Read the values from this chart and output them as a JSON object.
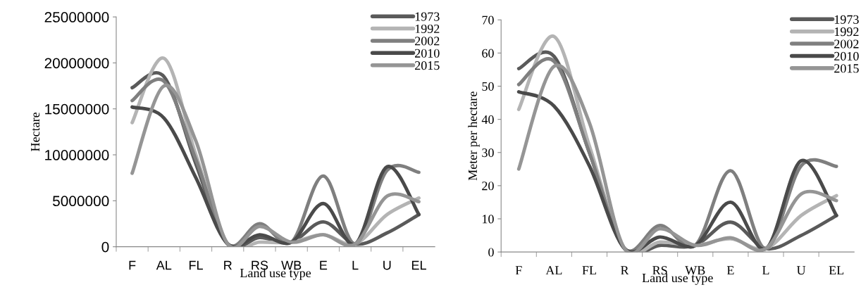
{
  "chart_data": [
    {
      "type": "line",
      "xlabel": "Land use type",
      "ylabel": "Hectare",
      "categories": [
        "F",
        "AL",
        "FL",
        "R",
        "RS",
        "WB",
        "E",
        "L",
        "U",
        "EL"
      ],
      "ylim": [
        0,
        25000000
      ],
      "yticks": [
        0,
        5000000,
        10000000,
        15000000,
        20000000,
        25000000
      ],
      "grid": false,
      "legend": "top right",
      "marker": "none",
      "line_style": "solid",
      "series": [
        {
          "name": "1973",
          "color": "#5a5a5a",
          "values": [
            17300000,
            18500000,
            9000000,
            300000,
            1000000,
            500000,
            2700000,
            300000,
            1500000,
            3500000
          ]
        },
        {
          "name": "1992",
          "color": "#b4b4b4",
          "values": [
            13500000,
            20500000,
            10000000,
            300000,
            500000,
            500000,
            1300000,
            300000,
            3500000,
            5300000
          ]
        },
        {
          "name": "2002",
          "color": "#7f7f7f",
          "values": [
            15900000,
            18000000,
            9500000,
            300000,
            2500000,
            500000,
            7700000,
            300000,
            8300000,
            8100000
          ]
        },
        {
          "name": "2010",
          "color": "#4a4a4a",
          "values": [
            15200000,
            14000000,
            7500000,
            300000,
            1300000,
            500000,
            4700000,
            300000,
            8700000,
            3500000
          ]
        },
        {
          "name": "2015",
          "color": "#959595",
          "values": [
            8000000,
            17500000,
            11500000,
            300000,
            2200000,
            500000,
            1300000,
            300000,
            5500000,
            4900000
          ]
        }
      ]
    },
    {
      "type": "line",
      "xlabel": "Land use type",
      "ylabel": "Meter per hectare",
      "categories": [
        "F",
        "AL",
        "FL",
        "R",
        "RS",
        "WB",
        "E",
        "L",
        "U",
        "EL"
      ],
      "ylim": [
        0,
        70
      ],
      "yticks": [
        0,
        10,
        20,
        30,
        40,
        50,
        60,
        70
      ],
      "grid": false,
      "legend": "top right",
      "marker": "none",
      "line_style": "solid",
      "series": [
        {
          "name": "1973",
          "color": "#5a5a5a",
          "values": [
            55.3,
            59,
            30,
            1,
            2,
            2,
            9,
            1,
            5,
            11
          ]
        },
        {
          "name": "1992",
          "color": "#b4b4b4",
          "values": [
            43,
            65,
            32,
            1,
            3,
            2,
            4,
            1,
            11,
            17
          ]
        },
        {
          "name": "2002",
          "color": "#7f7f7f",
          "values": [
            50.5,
            57.5,
            30,
            1,
            8,
            2,
            24.5,
            1,
            26,
            25.8
          ]
        },
        {
          "name": "2010",
          "color": "#4a4a4a",
          "values": [
            48.3,
            44,
            26,
            1,
            4.5,
            2,
            15,
            1,
            27.5,
            11
          ]
        },
        {
          "name": "2015",
          "color": "#959595",
          "values": [
            25,
            56,
            39,
            1,
            7,
            2,
            4.3,
            1,
            17.5,
            15.5
          ]
        }
      ]
    }
  ]
}
